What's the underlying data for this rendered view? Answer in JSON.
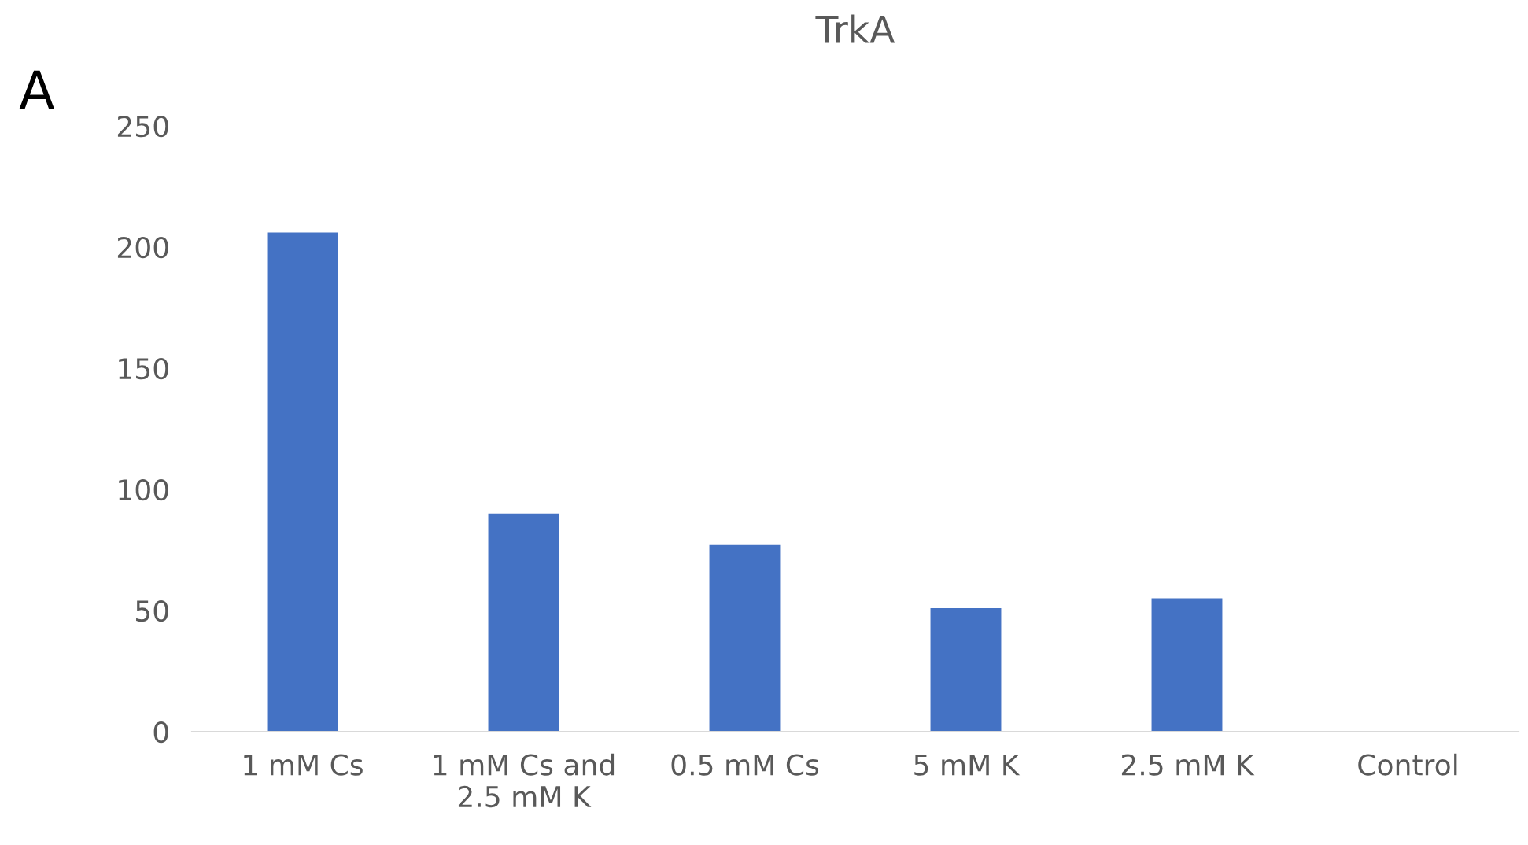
{
  "chart_data": {
    "type": "bar",
    "title": "TrkA",
    "categories": [
      "1 mM Cs",
      "1 mM Cs and\n2.5 mM K",
      "0.5 mM Cs",
      "5 mM K",
      "2.5 mM K",
      "Control"
    ],
    "values": [
      206,
      90,
      77,
      51,
      55,
      0
    ],
    "color": "#4472c4",
    "ylim": [
      0,
      250
    ],
    "yticks": [
      0,
      50,
      100,
      150,
      200,
      250
    ],
    "annotations": [
      "A"
    ],
    "grid": false,
    "legend": false
  }
}
